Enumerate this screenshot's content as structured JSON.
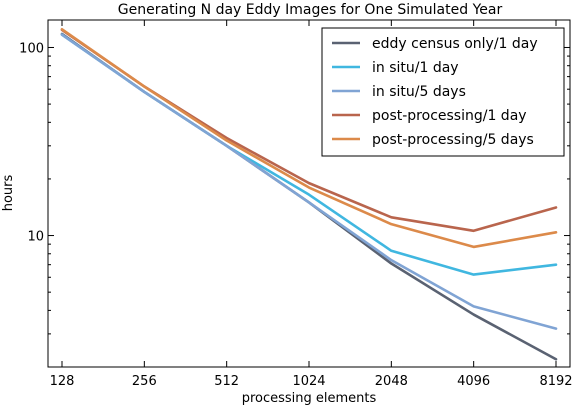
{
  "chart_data": {
    "type": "line",
    "title": "Generating N day Eddy Images for One Simulated Year",
    "xlabel": "processing elements",
    "ylabel": "hours",
    "xscale": "log2",
    "yscale": "log10",
    "x": [
      128,
      256,
      512,
      1024,
      2048,
      4096,
      8192
    ],
    "x_tick_labels": [
      "128",
      "256",
      "512",
      "1024",
      "2048",
      "4096",
      "8192"
    ],
    "y_ticks": [
      10,
      100
    ],
    "y_tick_labels": [
      "10",
      "100"
    ],
    "xlim": [
      128,
      8192
    ],
    "ylim": [
      2,
      140
    ],
    "grid": false,
    "legend_position": "top-right",
    "series": [
      {
        "name": "eddy census only/1 day",
        "color": "#5a6272",
        "values": [
          118,
          58,
          30,
          15,
          7.1,
          3.8,
          2.2
        ]
      },
      {
        "name": "in situ/1 day",
        "color": "#40b7e0",
        "values": [
          117,
          58,
          30,
          16.5,
          8.3,
          6.2,
          7.0
        ]
      },
      {
        "name": "in situ/5 days",
        "color": "#80a4d4",
        "values": [
          117,
          58,
          30,
          15,
          7.4,
          4.2,
          3.2
        ]
      },
      {
        "name": "post-processing/1 day",
        "color": "#b9654d",
        "values": [
          124,
          62,
          33,
          19,
          12.5,
          10.6,
          14.1
        ]
      },
      {
        "name": "post-processing/5 days",
        "color": "#dc8a4a",
        "values": [
          125,
          62,
          32,
          18,
          11.5,
          8.7,
          10.4
        ]
      }
    ]
  }
}
